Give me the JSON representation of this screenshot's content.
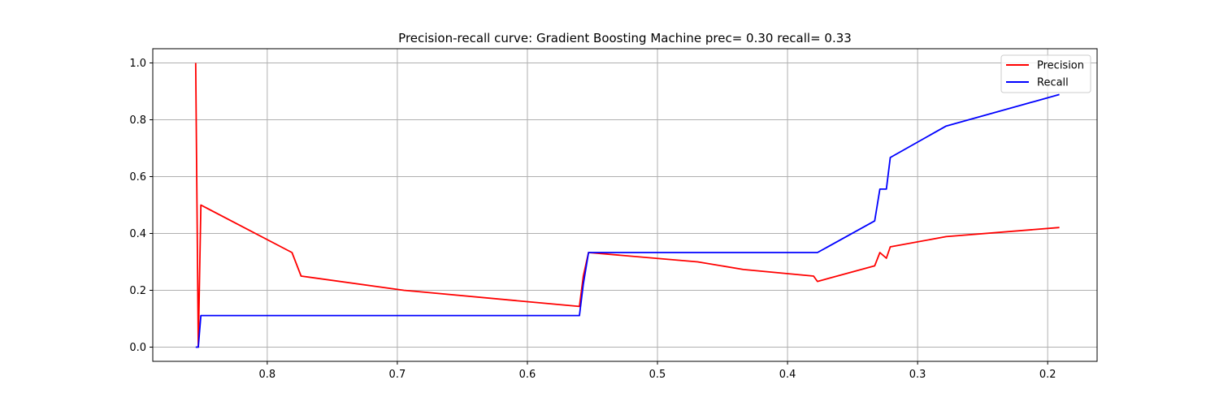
{
  "chart_data": {
    "type": "line",
    "title": "Precision-recall curve: Gradient Boosting Machine prec= 0.30 recall= 0.33",
    "xlabel": "",
    "ylabel": "",
    "xlim": [
      0.888,
      0.162
    ],
    "ylim": [
      -0.05,
      1.05
    ],
    "x_inverted": true,
    "grid": true,
    "legend_position": "top-right",
    "x_ticks": [
      "0.8",
      "0.7",
      "0.6",
      "0.5",
      "0.4",
      "0.3",
      "0.2"
    ],
    "y_ticks": [
      "0.0",
      "0.2",
      "0.4",
      "0.6",
      "0.8",
      "1.0"
    ],
    "series": [
      {
        "name": "Precision",
        "color": "#ff0000",
        "points": [
          [
            0.855,
            1.0
          ],
          [
            0.853,
            0.0
          ],
          [
            0.851,
            0.5
          ],
          [
            0.781,
            0.333
          ],
          [
            0.774,
            0.25
          ],
          [
            0.695,
            0.2
          ],
          [
            0.56,
            0.143
          ],
          [
            0.557,
            0.25
          ],
          [
            0.553,
            0.333
          ],
          [
            0.469,
            0.3
          ],
          [
            0.434,
            0.273
          ],
          [
            0.38,
            0.25
          ],
          [
            0.377,
            0.231
          ],
          [
            0.333,
            0.286
          ],
          [
            0.329,
            0.333
          ],
          [
            0.324,
            0.313
          ],
          [
            0.321,
            0.353
          ],
          [
            0.278,
            0.389
          ],
          [
            0.191,
            0.421
          ]
        ]
      },
      {
        "name": "Recall",
        "color": "#0000ff",
        "points": [
          [
            0.855,
            0.0
          ],
          [
            0.853,
            0.0
          ],
          [
            0.851,
            0.111
          ],
          [
            0.56,
            0.111
          ],
          [
            0.557,
            0.222
          ],
          [
            0.553,
            0.333
          ],
          [
            0.377,
            0.333
          ],
          [
            0.333,
            0.444
          ],
          [
            0.329,
            0.556
          ],
          [
            0.324,
            0.556
          ],
          [
            0.321,
            0.667
          ],
          [
            0.278,
            0.778
          ],
          [
            0.191,
            0.889
          ]
        ]
      }
    ]
  }
}
